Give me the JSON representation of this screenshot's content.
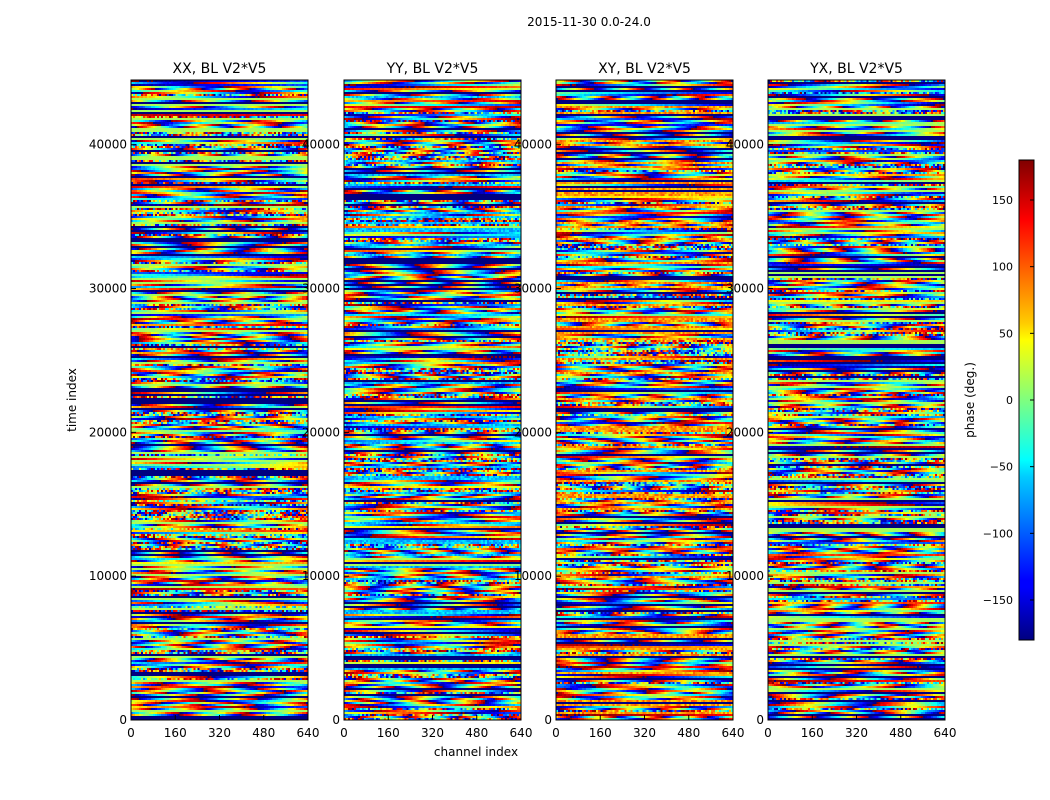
{
  "figure_title": "2015-11-30 0.0-24.0",
  "chart_data": {
    "type": "heatmap",
    "title": "2015-11-30 0.0-24.0",
    "xlabel": "channel index",
    "ylabel": "time index",
    "xlim": [
      0,
      640
    ],
    "ylim": [
      0,
      44500
    ],
    "xticks": [
      0,
      160,
      320,
      480,
      640
    ],
    "yticks": [
      0,
      10000,
      20000,
      30000,
      40000
    ],
    "colormap": "jet",
    "colorbar": {
      "label": "phase (deg.)",
      "range": [
        -180,
        180
      ],
      "ticks": [
        -150,
        -100,
        -50,
        0,
        50,
        100,
        150
      ],
      "tick_labels": [
        "−150",
        "−100",
        "−50",
        "0",
        "50",
        "100",
        "150"
      ],
      "placement": "right"
    },
    "panels": [
      {
        "title": "XX, BL V2*V5"
      },
      {
        "title": "YY, BL V2*V5"
      },
      {
        "title": "XY, BL V2*V5"
      },
      {
        "title": "YX, BL V2*V5"
      }
    ]
  }
}
